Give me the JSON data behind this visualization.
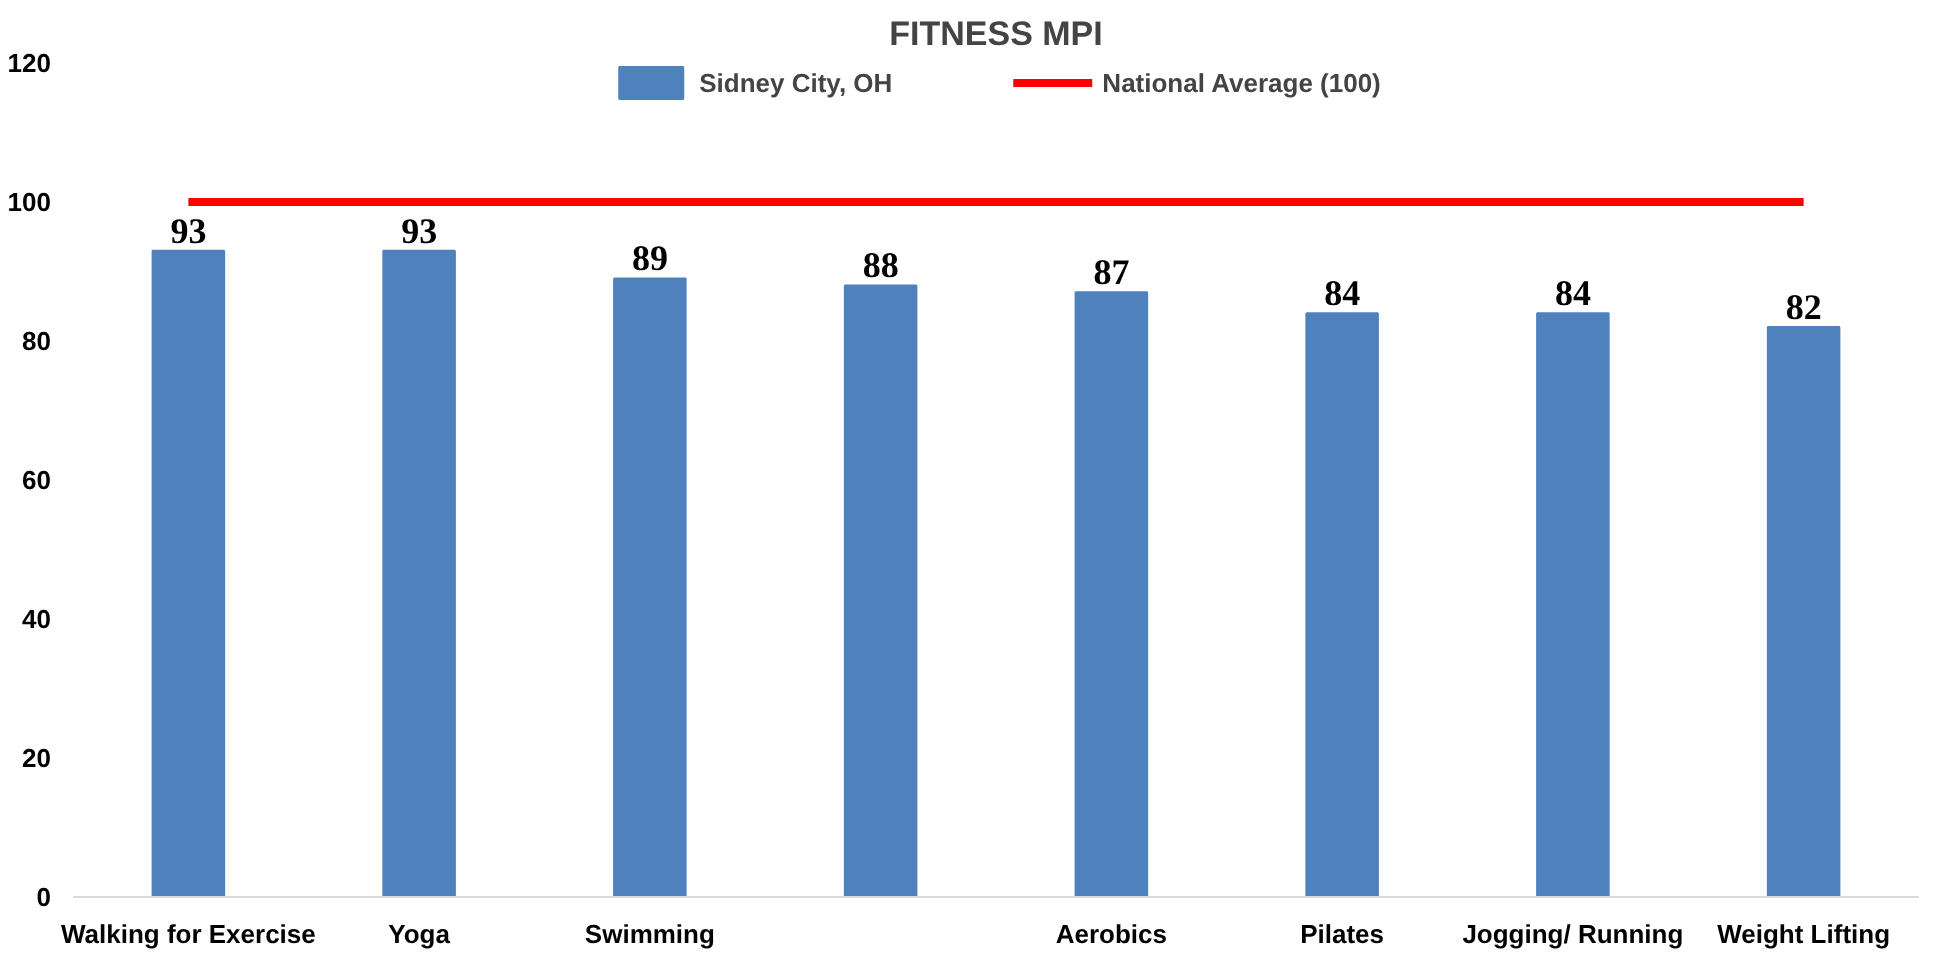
{
  "chart_data": {
    "type": "bar",
    "title": "FITNESS MPI",
    "categories": [
      "Walking for Exercise",
      "Yoga",
      "Swimming",
      null,
      "Aerobics",
      "Pilates",
      "Jogging/ Running",
      "Weight Lifting"
    ],
    "series": [
      {
        "name": "Sidney City, OH",
        "color": "#4f81bd",
        "values": [
          93,
          93,
          89,
          88,
          87,
          84,
          84,
          82
        ],
        "value_labels": [
          "93",
          "93",
          "89",
          "88",
          "87",
          "84",
          "84",
          "82"
        ]
      },
      {
        "name": "National Average (100)",
        "type": "line",
        "color": "#ff0000",
        "values": [
          100,
          100,
          100,
          100,
          100,
          100,
          100,
          100
        ]
      }
    ],
    "ylim": [
      0,
      120
    ],
    "yticks": [
      0,
      20,
      40,
      60,
      80,
      100,
      120
    ],
    "legend": "top"
  }
}
